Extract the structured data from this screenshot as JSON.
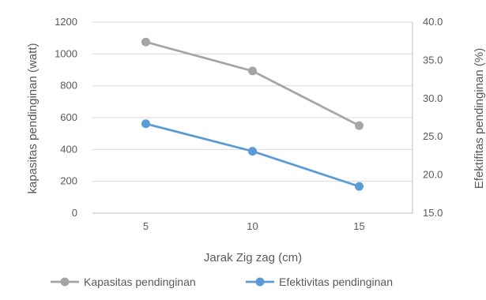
{
  "chart_data": {
    "type": "line",
    "title": "",
    "categories": [
      "5",
      "10",
      "15"
    ],
    "xlabel": "Jarak Zig zag (cm)",
    "ylabel": "kapasitas pendinginan (watt)",
    "y2label": "Efektifitas pendinginan (%)",
    "ylim": [
      0,
      1200
    ],
    "y_ticks": [
      "0",
      "200",
      "400",
      "600",
      "800",
      "1000",
      "1200"
    ],
    "y2lim": [
      15,
      40
    ],
    "y2_ticks": [
      "15.0",
      "20.0",
      "25.0",
      "30.0",
      "35.0",
      "40.0"
    ],
    "grid": "horizontal",
    "legend_position": "bottom",
    "series": [
      {
        "name": "Kapasitas pendinginan",
        "axis": "left",
        "color": "#a5a5a5",
        "values": [
          1075,
          893,
          550
        ]
      },
      {
        "name": "Efektivitas pendinginan",
        "axis": "right",
        "color": "#5b9bd5",
        "values": [
          26.7,
          23.1,
          18.5
        ]
      }
    ]
  }
}
